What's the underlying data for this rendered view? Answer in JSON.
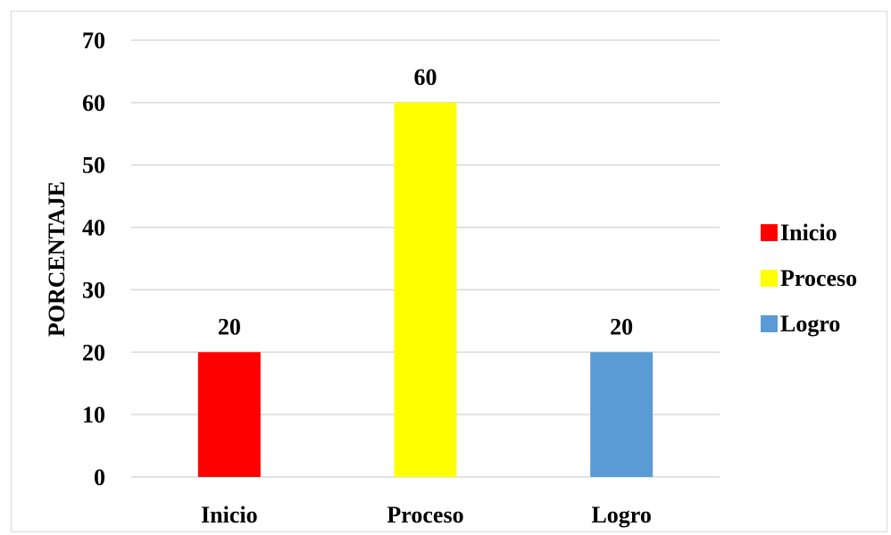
{
  "chart_data": {
    "type": "bar",
    "title": "",
    "xlabel": "",
    "ylabel": "PORCENTAJE",
    "categories": [
      "Inicio",
      "Proceso",
      "Logro"
    ],
    "values": [
      20,
      60,
      20
    ],
    "colors": [
      "#ff0000",
      "#ffff00",
      "#5b9bd5"
    ],
    "ylim": [
      0,
      70
    ],
    "yticks": [
      "0",
      "10",
      "20",
      "30",
      "40",
      "50",
      "60",
      "70"
    ],
    "data_labels": [
      "20",
      "60",
      "20"
    ],
    "grid": true,
    "legend": {
      "position": "right",
      "entries": [
        {
          "label": "Inicio",
          "color": "#ff0000"
        },
        {
          "label": "Proceso",
          "color": "#ffff00"
        },
        {
          "label": "Logro",
          "color": "#5b9bd5"
        }
      ]
    },
    "gridline_color": "#d9d9d9"
  }
}
